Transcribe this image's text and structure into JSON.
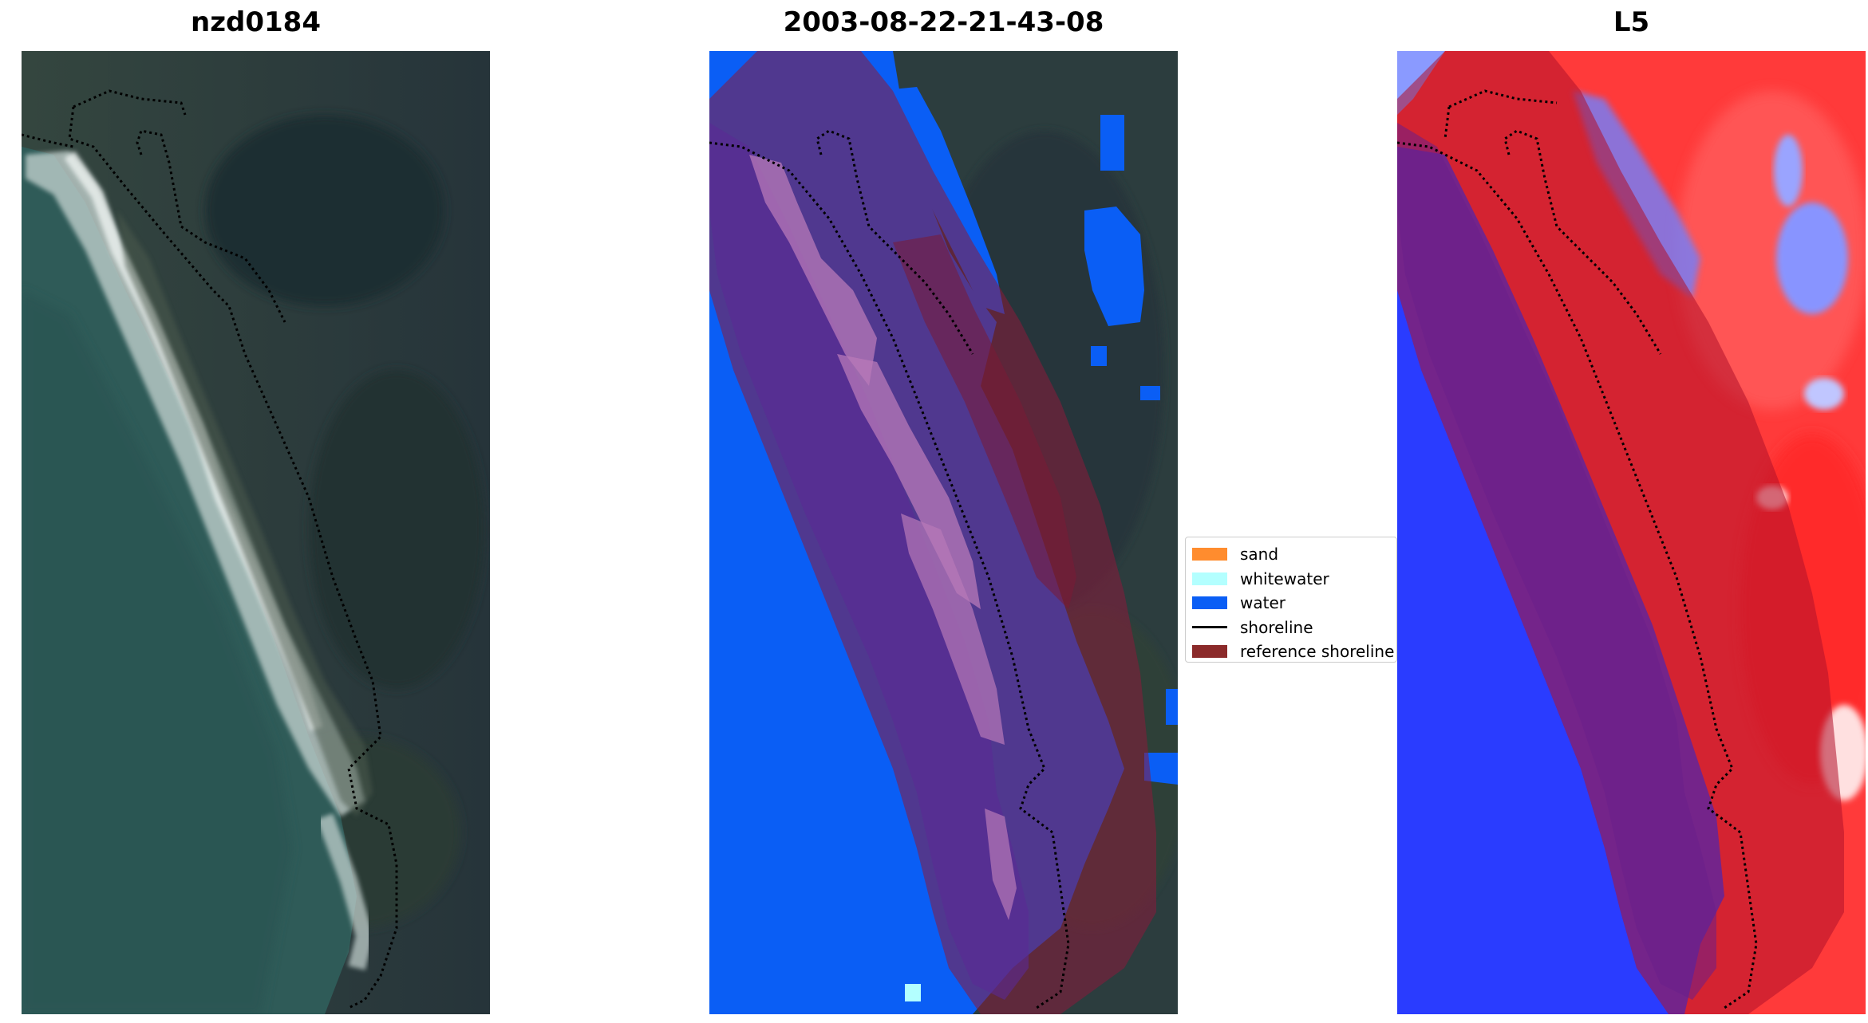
{
  "titles": {
    "left": "nzd0184",
    "center": "2003-08-22-21-43-08",
    "right": "L5"
  },
  "legend": {
    "items": [
      {
        "label": "sand",
        "color": "#ff8c2e",
        "kind": "patch"
      },
      {
        "label": "whitewater",
        "color": "#b3ffff",
        "kind": "patch"
      },
      {
        "label": "water",
        "color": "#0a5ef5",
        "kind": "patch"
      },
      {
        "label": "shoreline",
        "color": "#000000",
        "kind": "line"
      },
      {
        "label": "reference shoreline",
        "color": "#8b2a2a",
        "kind": "patch"
      }
    ]
  },
  "colors": {
    "ocean": "#2f5b58",
    "land_dark": "#2c3d3e",
    "surf": "#e6ecea",
    "classified_water": "#0a5ef5",
    "reference_buffer": "#8b1a3a",
    "index_positive": "#ff2020",
    "index_negative": "#2030ff"
  }
}
